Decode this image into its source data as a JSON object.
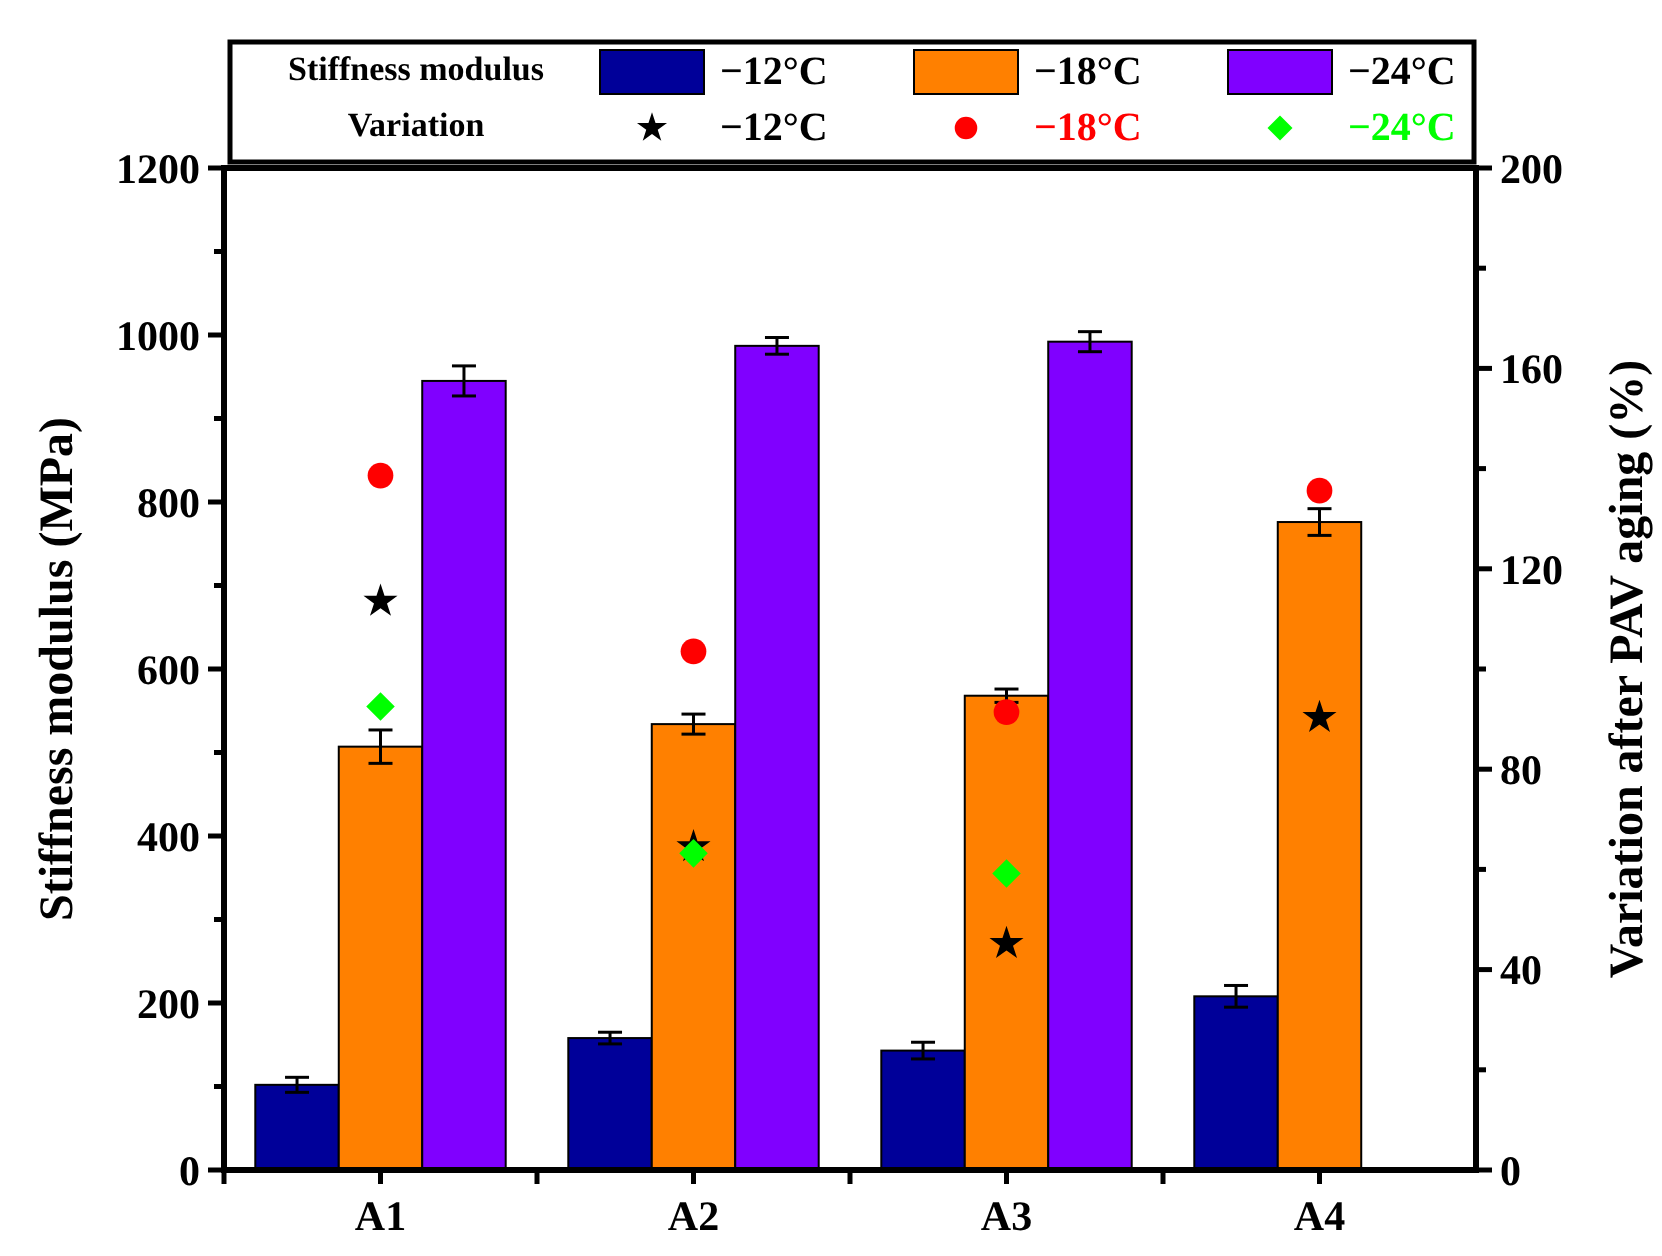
{
  "chart_data": {
    "type": "bar",
    "categories": [
      "A1",
      "A2",
      "A3",
      "A4"
    ],
    "ylabel": "Stiffness modulus (MPa)",
    "y2label": "Variation after PAV aging (%)",
    "ylim": [
      0,
      1200
    ],
    "yticks": [
      0,
      {
        "value": 100,
        "label": null
      },
      200,
      {
        "value": 300,
        "label": null
      },
      400,
      {
        "value": 500,
        "label": null
      },
      600,
      {
        "value": 700,
        "label": null
      },
      800,
      {
        "value": 900,
        "label": null
      },
      1000,
      {
        "value": 1100,
        "label": null
      },
      1200
    ],
    "y2lim": [
      0,
      200
    ],
    "y2ticks": [
      0,
      {
        "value": 20,
        "label": null
      },
      40,
      {
        "value": 60,
        "label": null
      },
      80,
      {
        "value": 100,
        "label": null
      },
      120,
      {
        "value": 140,
        "label": null
      },
      160,
      {
        "value": 180,
        "label": null
      },
      200
    ],
    "legend": "top",
    "annotations": [
      "Stiffness modulus",
      "Variation"
    ],
    "series": [
      {
        "name": "−12°C",
        "color": "#000099",
        "values": [
          102,
          158,
          143,
          208
        ],
        "errors": [
          9,
          7,
          10,
          13
        ]
      },
      {
        "name": "−18°C",
        "color": "#ff8000",
        "values": [
          507,
          534,
          568,
          776
        ],
        "errors": [
          20,
          12,
          8,
          16
        ]
      },
      {
        "name": "−24°C",
        "color": "#8000ff",
        "values": [
          945,
          987,
          992,
          null
        ],
        "errors": [
          18,
          10,
          12,
          null
        ]
      },
      {
        "name": "−12°C",
        "type": "scatter",
        "axis": "y2",
        "marker": "star",
        "color": "#000000",
        "values": [
          113.5,
          64.5,
          45.2,
          90.3
        ]
      },
      {
        "name": "−18°C",
        "type": "scatter",
        "axis": "y2",
        "marker": "circle",
        "color": "#ff0000",
        "values": [
          138.6,
          103.5,
          91.4,
          135.6
        ]
      },
      {
        "name": "−24°C",
        "type": "scatter",
        "axis": "y2",
        "marker": "diamond",
        "color": "#00ff00",
        "values": [
          92.5,
          63.2,
          59.2,
          null
        ]
      }
    ]
  }
}
